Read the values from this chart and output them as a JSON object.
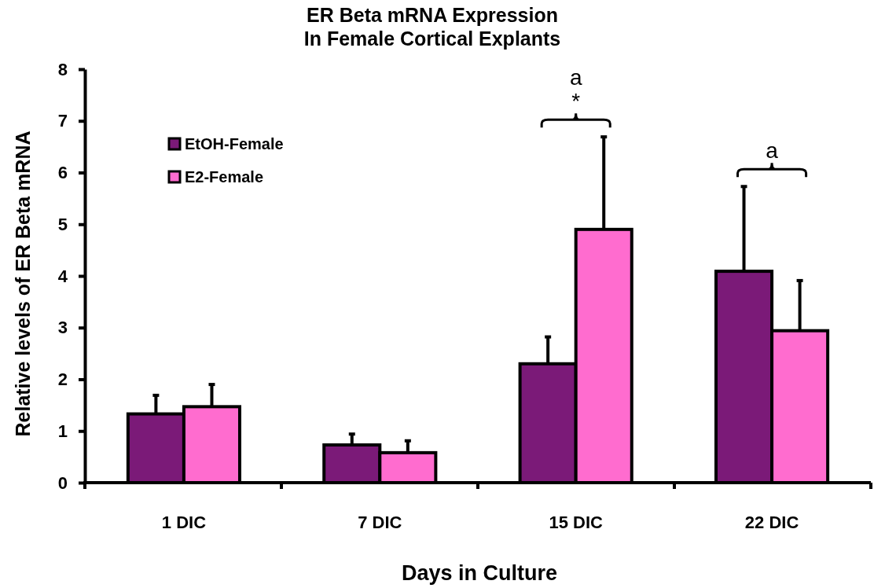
{
  "chart_data": {
    "type": "bar",
    "title": "ER Beta mRNA Expression\nIn Female Cortical Explants",
    "xlabel": "Days in Culture",
    "ylabel": "Relative levels of ER Beta mRNA",
    "categories": [
      "1 DIC",
      "7 DIC",
      "15 DIC",
      "22 DIC"
    ],
    "series": [
      {
        "name": "EtOH-Female",
        "color": "#7b1a78",
        "values": [
          1.33,
          0.73,
          2.3,
          4.09
        ],
        "errors": [
          0.36,
          0.21,
          0.52,
          1.64
        ]
      },
      {
        "name": "E2-Female",
        "color": "#ff6ccf",
        "values": [
          1.47,
          0.58,
          4.9,
          2.94
        ],
        "errors": [
          0.43,
          0.23,
          1.79,
          0.97
        ]
      }
    ],
    "ylim": [
      0,
      8
    ],
    "yticks": [
      0,
      1,
      2,
      3,
      4,
      5,
      6,
      7,
      8
    ],
    "grid": false,
    "legend": "top left",
    "annotations": [
      "a",
      "*",
      "a"
    ]
  }
}
